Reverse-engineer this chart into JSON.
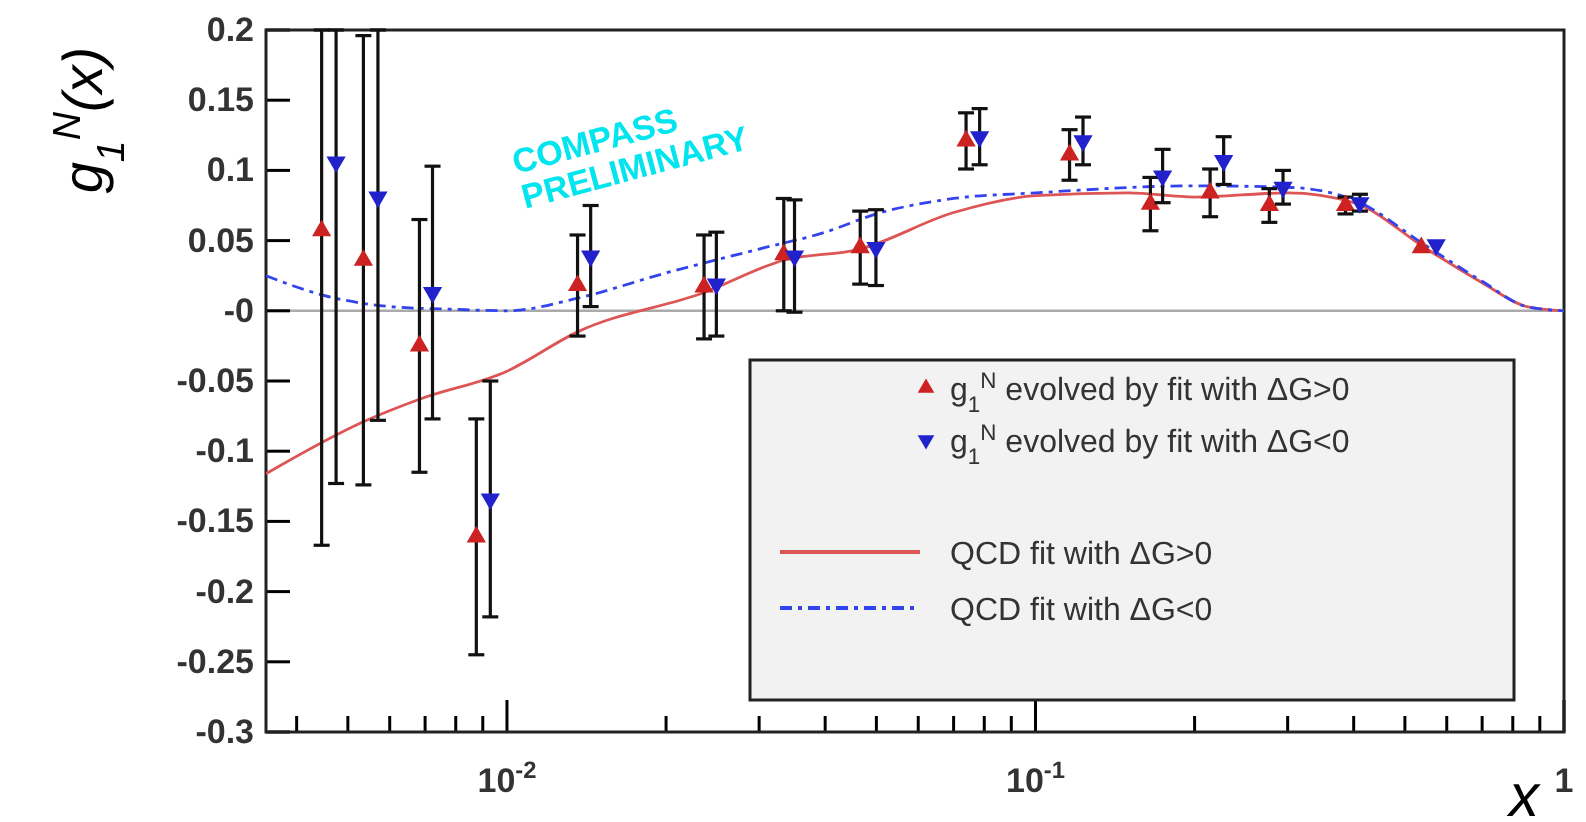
{
  "chart_data": {
    "type": "scatter",
    "ylabel": "g$_{1}$$^{N}$(x)",
    "xlabel": "x",
    "log": "x",
    "grid": false,
    "legend": "bottom right",
    "xlim": [
      0.0035,
      1
    ],
    "ylim": [
      -0.3,
      0.2
    ],
    "xticks": [
      {
        "value": 0.004,
        "label": null
      },
      {
        "value": 0.005,
        "label": null
      },
      {
        "value": 0.006,
        "label": null
      },
      {
        "value": 0.007,
        "label": null
      },
      {
        "value": 0.008,
        "label": null
      },
      {
        "value": 0.009,
        "label": null
      },
      {
        "value": 0.01,
        "label": "10$^{-2}$"
      },
      {
        "value": 0.02,
        "label": null
      },
      {
        "value": 0.03,
        "label": null
      },
      {
        "value": 0.04,
        "label": null
      },
      {
        "value": 0.05,
        "label": null
      },
      {
        "value": 0.06,
        "label": null
      },
      {
        "value": 0.07,
        "label": null
      },
      {
        "value": 0.08,
        "label": null
      },
      {
        "value": 0.09,
        "label": null
      },
      {
        "value": 0.1,
        "label": "10$^{-1}$"
      },
      {
        "value": 0.2,
        "label": null
      },
      {
        "value": 0.3,
        "label": null
      },
      {
        "value": 0.4,
        "label": null
      },
      {
        "value": 0.5,
        "label": null
      },
      {
        "value": 0.6,
        "label": null
      },
      {
        "value": 0.7,
        "label": null
      },
      {
        "value": 0.8,
        "label": null
      },
      {
        "value": 0.9,
        "label": null
      },
      1
    ],
    "yticks": [
      -0.3,
      -0.25,
      -0.2,
      -0.15,
      -0.1,
      -0.05,
      {
        "value": 0,
        "label": "-0"
      },
      0.05,
      0.1,
      0.15,
      0.2
    ],
    "ref_lines": [
      {
        "axis": "y",
        "value": 0,
        "color": "#aaaaaa"
      }
    ],
    "annotations": [
      "COMPASS PRELIMINARY"
    ],
    "series": [
      {
        "name": "g$_{1}$$^{N}$ evolved by fit with ΔG>0",
        "marker": "triangle",
        "color": "#cc2222",
        "x": [
          0.00446,
          0.00535,
          0.00683,
          0.00875,
          0.0136,
          0.0236,
          0.0334,
          0.0466,
          0.0739,
          0.116,
          0.165,
          0.214,
          0.277,
          0.386,
          0.537
        ],
        "values": [
          0.057,
          0.036,
          -0.025,
          -0.161,
          0.018,
          0.017,
          0.04,
          0.045,
          0.121,
          0.111,
          0.076,
          0.084,
          0.075,
          0.075,
          0.045
        ],
        "errors": [
          [
            -0.167,
            0.2
          ],
          0.16,
          0.09,
          0.084,
          0.036,
          0.037,
          0.04,
          0.026,
          0.02,
          0.018,
          0.019,
          0.017,
          0.012,
          0.006,
          null
        ]
      },
      {
        "name": "g$_{1}$$^{N}$ evolved by fit with ΔG<0",
        "marker": "triangle-down",
        "color": "#2222cc",
        "x": [
          0.00475,
          0.0057,
          0.00723,
          0.0093,
          0.0144,
          0.0249,
          0.035,
          0.0499,
          0.0784,
          0.123,
          0.174,
          0.227,
          0.294,
          0.411,
          0.573
        ],
        "values": [
          0.106,
          0.081,
          0.013,
          -0.134,
          0.039,
          0.019,
          0.039,
          0.045,
          0.124,
          0.121,
          0.096,
          0.107,
          0.088,
          0.077,
          0.047
        ],
        "errors": [
          [
            -0.123,
            0.2
          ],
          [
            -0.078,
            0.2
          ],
          0.09,
          0.084,
          0.036,
          0.037,
          0.04,
          0.027,
          0.02,
          0.017,
          0.019,
          0.017,
          0.012,
          0.006,
          null
        ]
      },
      {
        "name": "QCD fit with ΔG>0",
        "type": "line",
        "marker": "none",
        "line_style": "solid",
        "color": "#dd5555",
        "x": [
          0.0035,
          0.00535,
          0.00683,
          0.01,
          0.0136,
          0.0236,
          0.0334,
          0.0466,
          0.07,
          0.1,
          0.15,
          0.2,
          0.3,
          0.4,
          0.55,
          0.7,
          0.85,
          1
        ],
        "values": [
          -0.116,
          -0.079,
          -0.063,
          -0.043,
          -0.015,
          0.013,
          0.036,
          0.044,
          0.07,
          0.082,
          0.084,
          0.081,
          0.084,
          0.077,
          0.044,
          0.02,
          0.003,
          0
        ]
      },
      {
        "name": "QCD fit with ΔG<0",
        "type": "line",
        "marker": "none",
        "line_style": "dashed",
        "color": "#3344ee",
        "x": [
          0.0035,
          0.0045,
          0.006,
          0.008,
          0.01,
          0.0136,
          0.02,
          0.03,
          0.04,
          0.05,
          0.07,
          0.1,
          0.2,
          0.3,
          0.4,
          0.55,
          0.7,
          0.85,
          1
        ],
        "values": [
          0.025,
          0.011,
          0.003,
          0.001,
          0,
          0.009,
          0.027,
          0.044,
          0.056,
          0.069,
          0.08,
          0.084,
          0.089,
          0.088,
          0.079,
          0.046,
          0.021,
          0.003,
          0
        ]
      }
    ]
  }
}
